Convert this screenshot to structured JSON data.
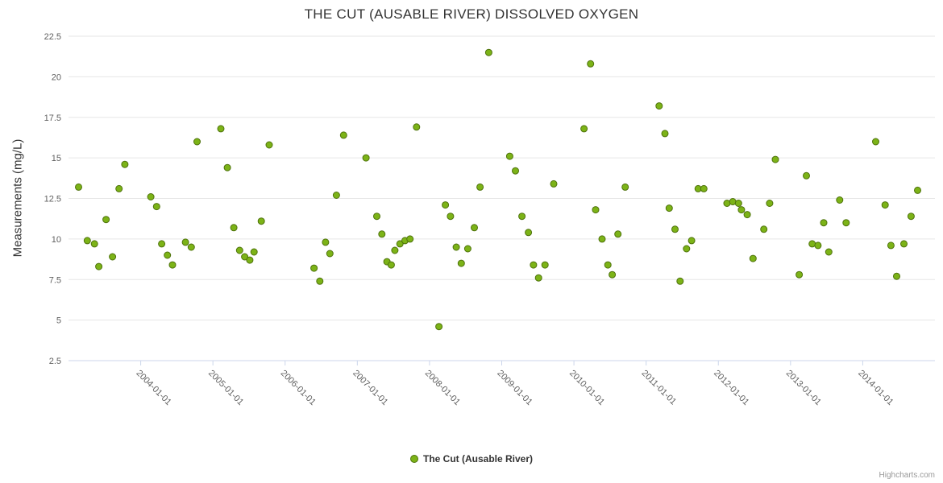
{
  "credits": "Highcharts.com",
  "chart_data": {
    "type": "scatter",
    "title": "THE CUT (AUSABLE RIVER) DISSOLVED OXYGEN",
    "xlabel": "",
    "ylabel": "Measurements (mg/L)",
    "ylim": [
      2.5,
      22.5
    ],
    "xlim": [
      2003.0,
      2015.0
    ],
    "grid": true,
    "legend_position": "bottom-center",
    "y_ticks": [
      {
        "v": 2.5,
        "label": "2.5"
      },
      {
        "v": 5,
        "label": "5"
      },
      {
        "v": 7.5,
        "label": "7.5"
      },
      {
        "v": 10,
        "label": "10"
      },
      {
        "v": 12.5,
        "label": "12.5"
      },
      {
        "v": 15,
        "label": "15"
      },
      {
        "v": 17.5,
        "label": "17.5"
      },
      {
        "v": 20,
        "label": "20"
      },
      {
        "v": 22.5,
        "label": "22.5"
      }
    ],
    "x_ticks": [
      {
        "v": 2004,
        "label": "2004-01-01"
      },
      {
        "v": 2005,
        "label": "2005-01-01"
      },
      {
        "v": 2006,
        "label": "2006-01-01"
      },
      {
        "v": 2007,
        "label": "2007-01-01"
      },
      {
        "v": 2008,
        "label": "2008-01-01"
      },
      {
        "v": 2009,
        "label": "2009-01-01"
      },
      {
        "v": 2010,
        "label": "2010-01-01"
      },
      {
        "v": 2011,
        "label": "2011-01-01"
      },
      {
        "v": 2012,
        "label": "2012-01-01"
      },
      {
        "v": 2013,
        "label": "2013-01-01"
      },
      {
        "v": 2014,
        "label": "2014-01-01"
      }
    ],
    "series": [
      {
        "name": "The Cut (Ausable River)",
        "marker_color": "#7cb317",
        "marker_stroke": "#4e720c",
        "points": [
          [
            2003.14,
            13.2
          ],
          [
            2003.26,
            9.9
          ],
          [
            2003.36,
            9.7
          ],
          [
            2003.42,
            8.3
          ],
          [
            2003.52,
            11.2
          ],
          [
            2003.61,
            8.9
          ],
          [
            2003.7,
            13.1
          ],
          [
            2003.78,
            14.6
          ],
          [
            2004.14,
            12.6
          ],
          [
            2004.22,
            12.0
          ],
          [
            2004.29,
            9.7
          ],
          [
            2004.37,
            9.0
          ],
          [
            2004.44,
            8.4
          ],
          [
            2004.62,
            9.8
          ],
          [
            2004.7,
            9.5
          ],
          [
            2004.78,
            16.0
          ],
          [
            2005.11,
            16.8
          ],
          [
            2005.2,
            14.4
          ],
          [
            2005.29,
            10.7
          ],
          [
            2005.37,
            9.3
          ],
          [
            2005.44,
            8.9
          ],
          [
            2005.51,
            8.7
          ],
          [
            2005.57,
            9.2
          ],
          [
            2005.67,
            11.1
          ],
          [
            2005.78,
            15.8
          ],
          [
            2006.4,
            8.2
          ],
          [
            2006.48,
            7.4
          ],
          [
            2006.56,
            9.8
          ],
          [
            2006.62,
            9.1
          ],
          [
            2006.71,
            12.7
          ],
          [
            2006.81,
            16.4
          ],
          [
            2007.12,
            15.0
          ],
          [
            2007.27,
            11.4
          ],
          [
            2007.34,
            10.3
          ],
          [
            2007.41,
            8.6
          ],
          [
            2007.47,
            8.4
          ],
          [
            2007.52,
            9.3
          ],
          [
            2007.59,
            9.7
          ],
          [
            2007.66,
            9.9
          ],
          [
            2007.73,
            10.0
          ],
          [
            2007.82,
            16.9
          ],
          [
            2008.13,
            4.6
          ],
          [
            2008.22,
            12.1
          ],
          [
            2008.29,
            11.4
          ],
          [
            2008.37,
            9.5
          ],
          [
            2008.44,
            8.5
          ],
          [
            2008.53,
            9.4
          ],
          [
            2008.62,
            10.7
          ],
          [
            2008.7,
            13.2
          ],
          [
            2008.82,
            21.5
          ],
          [
            2009.11,
            15.1
          ],
          [
            2009.19,
            14.2
          ],
          [
            2009.28,
            11.4
          ],
          [
            2009.37,
            10.4
          ],
          [
            2009.44,
            8.4
          ],
          [
            2009.51,
            7.6
          ],
          [
            2009.6,
            8.4
          ],
          [
            2009.72,
            13.4
          ],
          [
            2010.14,
            16.8
          ],
          [
            2010.23,
            20.8
          ],
          [
            2010.3,
            11.8
          ],
          [
            2010.39,
            10.0
          ],
          [
            2010.47,
            8.4
          ],
          [
            2010.53,
            7.8
          ],
          [
            2010.61,
            10.3
          ],
          [
            2010.71,
            13.2
          ],
          [
            2011.18,
            18.2
          ],
          [
            2011.26,
            16.5
          ],
          [
            2011.32,
            11.9
          ],
          [
            2011.4,
            10.6
          ],
          [
            2011.47,
            7.4
          ],
          [
            2011.56,
            9.4
          ],
          [
            2011.63,
            9.9
          ],
          [
            2011.72,
            13.1
          ],
          [
            2011.8,
            13.1
          ],
          [
            2012.12,
            12.2
          ],
          [
            2012.2,
            12.3
          ],
          [
            2012.28,
            12.2
          ],
          [
            2012.32,
            11.8
          ],
          [
            2012.4,
            11.5
          ],
          [
            2012.48,
            8.8
          ],
          [
            2012.63,
            10.6
          ],
          [
            2012.71,
            12.2
          ],
          [
            2012.79,
            14.9
          ],
          [
            2013.12,
            7.8
          ],
          [
            2013.22,
            13.9
          ],
          [
            2013.3,
            9.7
          ],
          [
            2013.38,
            9.6
          ],
          [
            2013.46,
            11.0
          ],
          [
            2013.53,
            9.2
          ],
          [
            2013.68,
            12.4
          ],
          [
            2013.77,
            11.0
          ],
          [
            2014.18,
            16.0
          ],
          [
            2014.31,
            12.1
          ],
          [
            2014.39,
            9.6
          ],
          [
            2014.47,
            7.7
          ],
          [
            2014.57,
            9.7
          ],
          [
            2014.67,
            11.4
          ],
          [
            2014.76,
            13.0
          ]
        ]
      }
    ],
    "style": {
      "grid_color": "#e6e6e6",
      "axis_line_color": "#ccd6eb",
      "tick_label_color": "#606060",
      "title_color": "#333333"
    }
  }
}
